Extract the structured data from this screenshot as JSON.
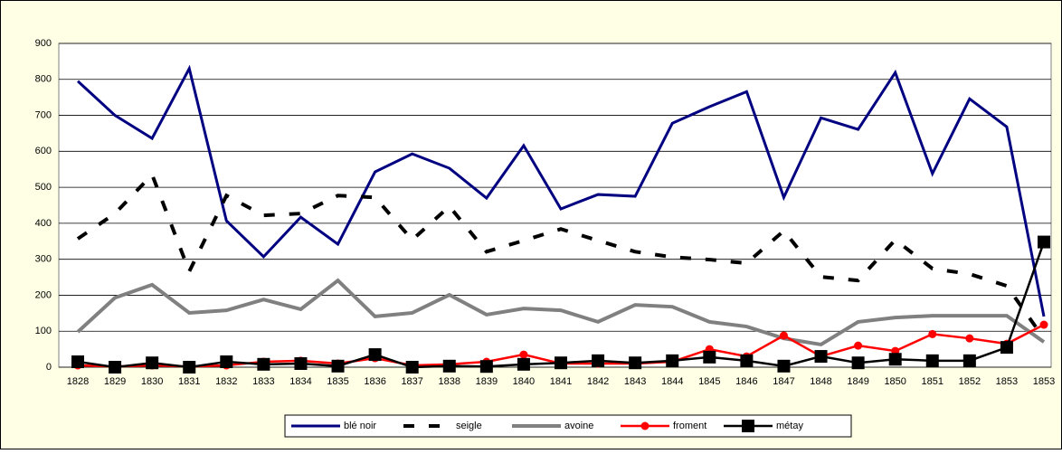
{
  "chart_data": {
    "type": "line",
    "categories": [
      "1828",
      "1829",
      "1830",
      "1831",
      "1832",
      "1833",
      "1834",
      "1835",
      "1836",
      "1837",
      "1838",
      "1839",
      "1840",
      "1841",
      "1842",
      "1843",
      "1844",
      "1845",
      "1846",
      "1847",
      "1848",
      "1849",
      "1850",
      "1851",
      "1852",
      "1853",
      "1853"
    ],
    "ylim": [
      0,
      900
    ],
    "yticks": [
      0,
      100,
      200,
      300,
      400,
      500,
      600,
      700,
      800,
      900
    ],
    "grid": true,
    "legend": "bottom",
    "series": [
      {
        "name": "blé noir",
        "color": "#000080",
        "values": [
          795,
          700,
          636,
          830,
          407,
          307,
          417,
          342,
          543,
          593,
          553,
          470,
          616,
          440,
          480,
          475,
          678,
          724,
          766,
          472,
          693,
          661,
          819,
          538,
          746,
          668,
          141
        ]
      },
      {
        "name": "seigle",
        "color": "#000000",
        "style": "dashed",
        "values": [
          357,
          427,
          535,
          266,
          477,
          422,
          427,
          477,
          472,
          354,
          447,
          321,
          352,
          384,
          352,
          321,
          306,
          299,
          289,
          379,
          251,
          241,
          354,
          274,
          259,
          226,
          80
        ]
      },
      {
        "name": "avoine",
        "color": "#808080",
        "values": [
          98,
          193,
          229,
          151,
          158,
          188,
          161,
          241,
          141,
          151,
          201,
          146,
          163,
          158,
          126,
          173,
          168,
          126,
          113,
          80,
          63,
          126,
          138,
          143,
          143,
          143,
          70
        ]
      },
      {
        "name": "froment",
        "color": "#ff0000",
        "marker": "circle",
        "values": [
          5,
          2,
          5,
          2,
          5,
          15,
          18,
          10,
          25,
          5,
          8,
          15,
          35,
          10,
          10,
          10,
          15,
          50,
          30,
          88,
          30,
          60,
          45,
          92,
          80,
          65,
          118
        ]
      },
      {
        "name": "métay",
        "color": "#000000",
        "marker": "square",
        "values": [
          15,
          0,
          12,
          0,
          15,
          8,
          10,
          3,
          35,
          0,
          3,
          2,
          8,
          12,
          18,
          12,
          18,
          28,
          18,
          3,
          30,
          12,
          22,
          18,
          18,
          55,
          348
        ]
      }
    ]
  }
}
